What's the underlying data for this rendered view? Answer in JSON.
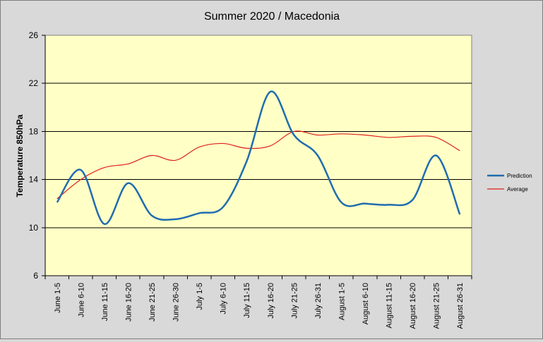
{
  "chart_data": {
    "type": "line",
    "title": "Summer 2020 / Macedonia",
    "xlabel": "",
    "ylabel": "Temperature 850hPa",
    "ylim": [
      6,
      26
    ],
    "yticks": [
      6,
      10,
      14,
      18,
      22,
      26
    ],
    "grid": true,
    "legend_position": "right",
    "categories": [
      "June 1-5",
      "June 6-10",
      "June 11-15",
      "June 16-20",
      "June 21-25",
      "June 26-30",
      "July 1-5",
      "July 6-10",
      "July 11-15",
      "July 16-20",
      "July 21-25",
      "July 26-31",
      "August 1-5",
      "August 6-10",
      "August 11-15",
      "August 16-20",
      "August 21-25",
      "August 26-31"
    ],
    "series": [
      {
        "name": "Prediction",
        "color": "#1f6cb0",
        "values": [
          12.1,
          14.8,
          10.3,
          13.7,
          11.0,
          10.7,
          11.2,
          11.7,
          15.5,
          21.3,
          17.7,
          16.0,
          12.1,
          12.0,
          11.9,
          12.3,
          16.0,
          11.1
        ]
      },
      {
        "name": "Average",
        "color": "#e0201b",
        "values": [
          12.4,
          14.0,
          15.0,
          15.3,
          16.0,
          15.6,
          16.7,
          17.0,
          16.6,
          16.8,
          18.0,
          17.7,
          17.8,
          17.7,
          17.5,
          17.6,
          17.5,
          16.4
        ]
      }
    ],
    "colors": {
      "plot_background": "#ffffc6",
      "page_background": "#d9d9d9",
      "gridline": "#000000"
    }
  }
}
